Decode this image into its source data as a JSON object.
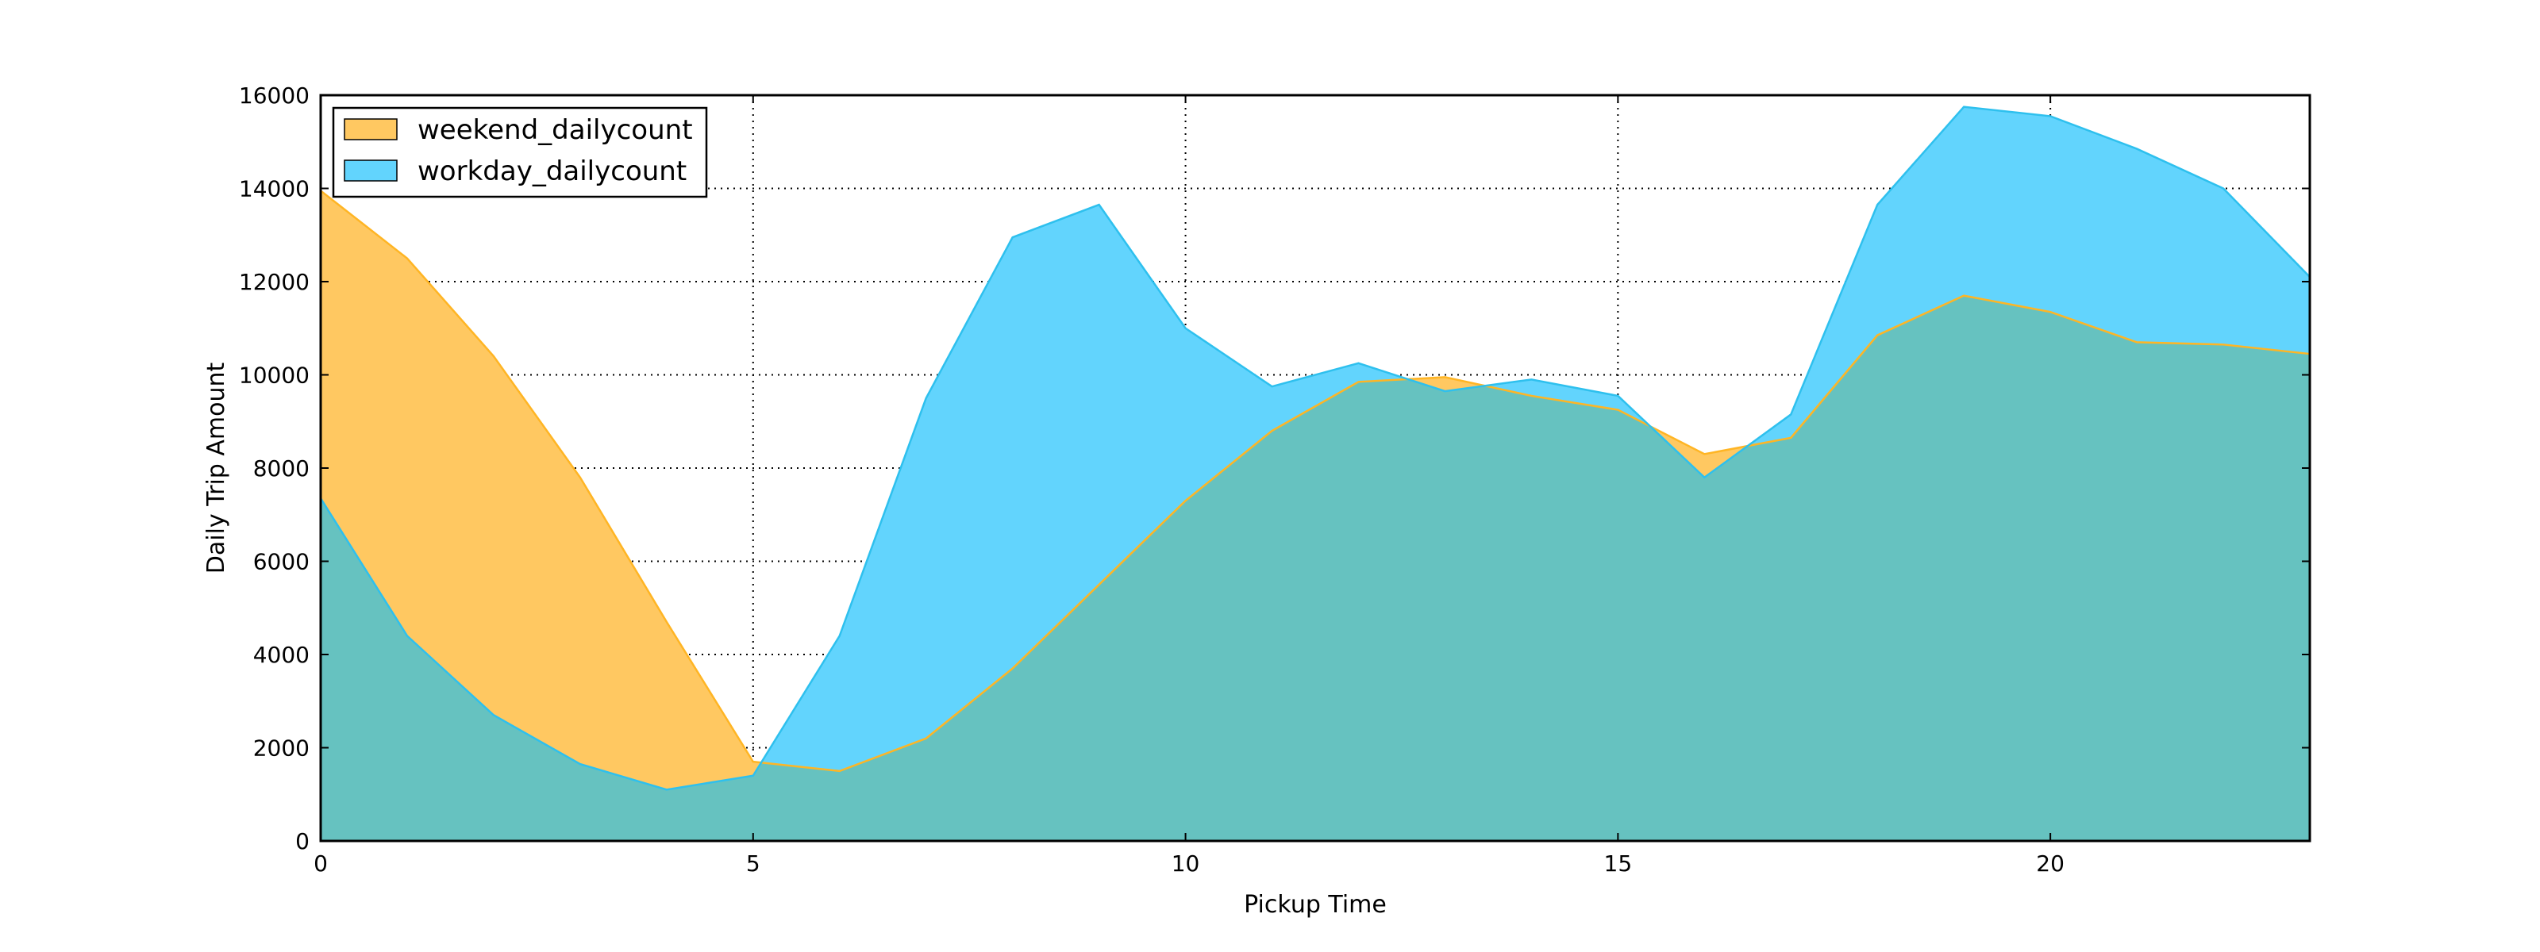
{
  "chart_data": {
    "type": "area",
    "title": "",
    "xlabel": "Pickup Time",
    "ylabel": "Daily Trip Amount",
    "x": [
      0,
      1,
      2,
      3,
      4,
      5,
      6,
      7,
      8,
      9,
      10,
      11,
      12,
      13,
      14,
      15,
      16,
      17,
      18,
      19,
      20,
      21,
      22,
      23
    ],
    "xlim": [
      0,
      23
    ],
    "ylim": [
      0,
      16000
    ],
    "x_ticks": [
      0,
      5,
      10,
      15,
      20
    ],
    "y_ticks": [
      0,
      2000,
      4000,
      6000,
      8000,
      10000,
      12000,
      14000,
      16000
    ],
    "grid": true,
    "legend_position": "top-left",
    "series": [
      {
        "name": "weekend_dailycount",
        "color": "#ffc861",
        "line_color": "#ffb524",
        "values": [
          13950,
          12500,
          10400,
          7800,
          4700,
          1700,
          1500,
          2200,
          3700,
          5500,
          7300,
          8800,
          9850,
          9950,
          9550,
          9250,
          8300,
          8650,
          10850,
          11700,
          11350,
          10700,
          10650,
          10450
        ]
      },
      {
        "name": "workday_dailycount",
        "color": "#62d4fd",
        "line_color": "#2ec0ee",
        "values": [
          7350,
          4400,
          2700,
          1650,
          1100,
          1400,
          4400,
          9500,
          12950,
          13650,
          11000,
          9750,
          10250,
          9650,
          9900,
          9550,
          7800,
          9150,
          13650,
          15750,
          15550,
          14850,
          14000,
          12100
        ]
      }
    ],
    "overlap_color": "#66c2c0"
  }
}
